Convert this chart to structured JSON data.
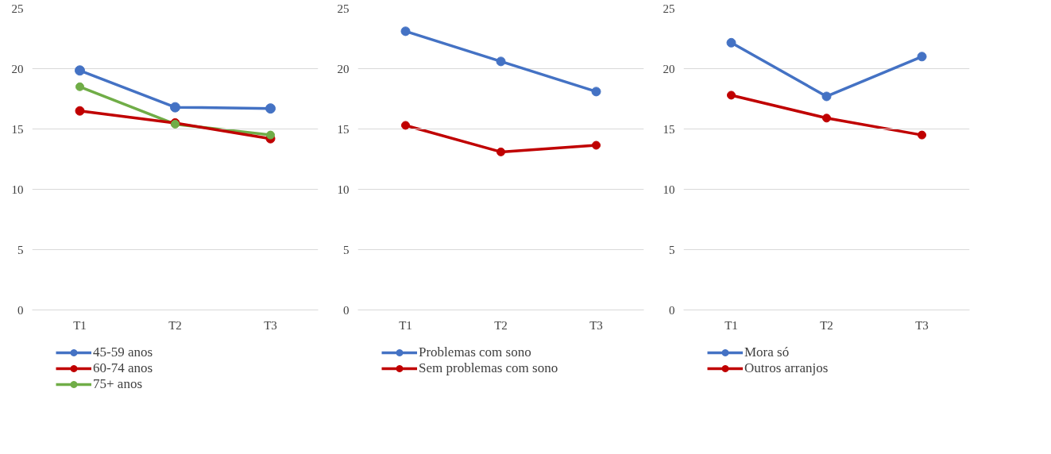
{
  "chart_data": [
    {
      "type": "line",
      "categories": [
        "T1",
        "T2",
        "T3"
      ],
      "ylim": [
        0,
        25
      ],
      "yticks": [
        0,
        5,
        10,
        15,
        20,
        25
      ],
      "grid": "y",
      "legend": "bottom",
      "marker": "circle",
      "line_style": "solid",
      "series": [
        {
          "name": "45-59 anos",
          "color": "#4472c4",
          "values": [
            19.85,
            16.8,
            16.7
          ]
        },
        {
          "name": "60-74 anos",
          "color": "#c00000",
          "values": [
            16.5,
            15.5,
            14.2
          ]
        },
        {
          "name": "75+ anos",
          "color": "#70ad47",
          "values": [
            18.5,
            15.4,
            14.5
          ]
        }
      ]
    },
    {
      "type": "line",
      "categories": [
        "T1",
        "T2",
        "T3"
      ],
      "ylim": [
        0,
        25
      ],
      "yticks": [
        0,
        5,
        10,
        15,
        20,
        25
      ],
      "grid": "y",
      "legend": "bottom",
      "marker": "circle",
      "line_style": "solid",
      "series": [
        {
          "name": "Problemas com sono",
          "color": "#4472c4",
          "values": [
            23.1,
            20.6,
            18.1
          ]
        },
        {
          "name": "Sem problemas com sono",
          "color": "#c00000",
          "values": [
            15.3,
            13.1,
            13.65
          ]
        }
      ]
    },
    {
      "type": "line",
      "categories": [
        "T1",
        "T2",
        "T3"
      ],
      "ylim": [
        0,
        25
      ],
      "yticks": [
        0,
        5,
        10,
        15,
        20,
        25
      ],
      "grid": "y",
      "legend": "bottom",
      "marker": "circle",
      "line_style": "solid",
      "series": [
        {
          "name": "Mora só",
          "color": "#4472c4",
          "values": [
            22.15,
            17.7,
            21.0
          ]
        },
        {
          "name": "Outros arranjos",
          "color": "#c00000",
          "values": [
            17.8,
            15.9,
            14.5
          ]
        }
      ]
    }
  ]
}
